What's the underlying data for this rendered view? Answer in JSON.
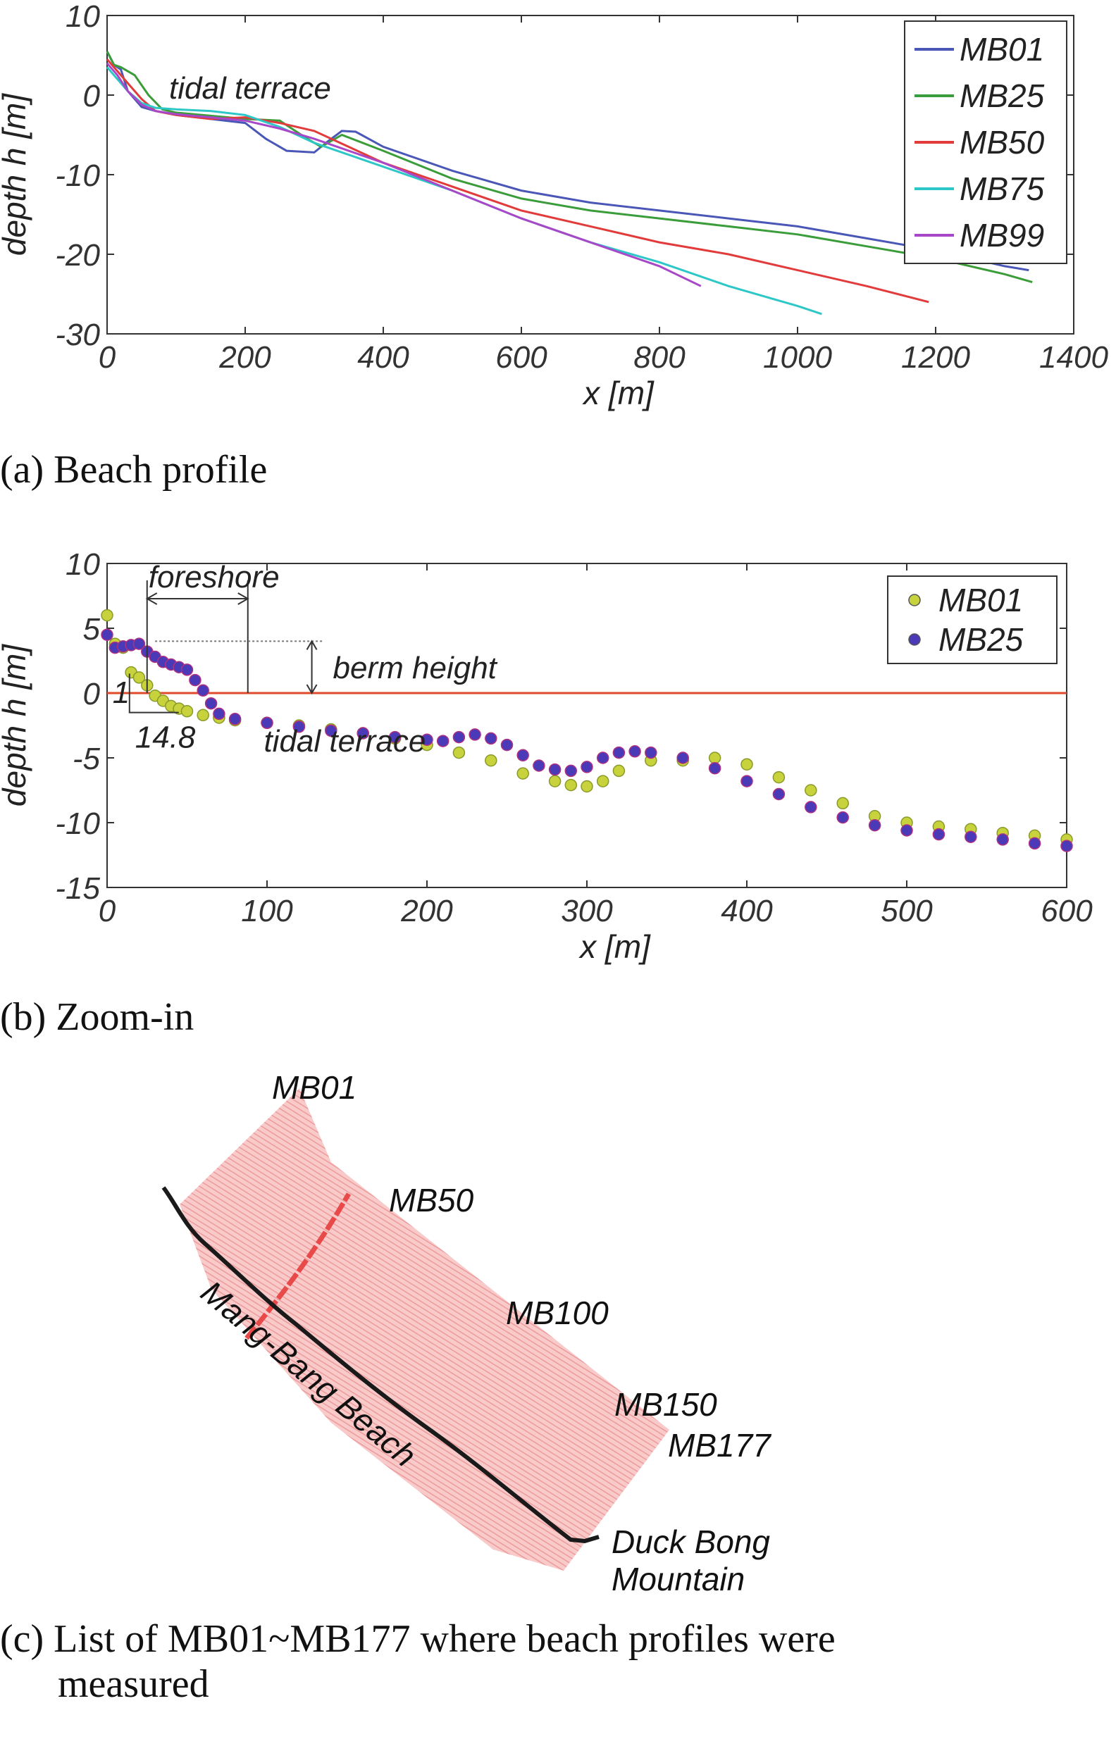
{
  "captions": {
    "a": "(a) Beach profile",
    "b": "(b) Zoom-in",
    "c_line1": "(c) List of MB01~MB177 where beach profiles were",
    "c_line2": "measured"
  },
  "chart_data": [
    {
      "type": "line",
      "panel": "a",
      "xlabel": "x [m]",
      "ylabel": "depth  h [m]",
      "xlim": [
        0,
        1400
      ],
      "ylim": [
        -30,
        10
      ],
      "xticks": [
        0,
        200,
        400,
        600,
        800,
        1000,
        1200,
        1400
      ],
      "yticks": [
        -30,
        -20,
        -10,
        0,
        10
      ],
      "legend_position": "top-right",
      "annotations": [
        {
          "text": "tidal terrace"
        }
      ],
      "series": [
        {
          "name": "MB01",
          "color": "#4a57b6",
          "x": [
            0,
            10,
            20,
            30,
            50,
            70,
            100,
            150,
            200,
            230,
            260,
            300,
            320,
            340,
            360,
            400,
            500,
            600,
            700,
            800,
            900,
            1000,
            1100,
            1200,
            1300,
            1335
          ],
          "y": [
            5.5,
            3.8,
            3.2,
            0.5,
            -1.5,
            -2.0,
            -2.5,
            -3.0,
            -3.5,
            -5.5,
            -7.0,
            -7.2,
            -5.8,
            -4.5,
            -4.6,
            -6.5,
            -9.5,
            -12.0,
            -13.5,
            -14.5,
            -15.5,
            -16.5,
            -18.0,
            -19.5,
            -21.5,
            -22.0
          ]
        },
        {
          "name": "MB25",
          "color": "#3a9d3a",
          "x": [
            0,
            10,
            20,
            40,
            60,
            80,
            100,
            150,
            200,
            250,
            290,
            310,
            340,
            400,
            500,
            600,
            700,
            800,
            900,
            1000,
            1100,
            1200,
            1300,
            1340
          ],
          "y": [
            5.5,
            3.8,
            3.5,
            2.5,
            0.0,
            -1.8,
            -2.2,
            -2.6,
            -3.0,
            -3.2,
            -5.5,
            -6.5,
            -5.0,
            -7.0,
            -10.5,
            -13.0,
            -14.5,
            -15.5,
            -16.5,
            -17.5,
            -19.0,
            -20.5,
            -22.5,
            -23.5
          ]
        },
        {
          "name": "MB50",
          "color": "#e23b3b",
          "x": [
            0,
            15,
            30,
            50,
            70,
            100,
            150,
            200,
            250,
            300,
            400,
            500,
            600,
            700,
            800,
            900,
            1000,
            1100,
            1190
          ],
          "y": [
            4.5,
            3.0,
            1.5,
            -0.5,
            -2.0,
            -2.5,
            -3.0,
            -2.8,
            -3.5,
            -4.5,
            -8.5,
            -11.5,
            -14.5,
            -16.5,
            -18.5,
            -20.0,
            -22.0,
            -24.0,
            -26.0
          ]
        },
        {
          "name": "MB75",
          "color": "#2ec7c7",
          "x": [
            0,
            15,
            30,
            50,
            70,
            100,
            150,
            200,
            250,
            300,
            400,
            500,
            600,
            700,
            800,
            900,
            1000,
            1035
          ],
          "y": [
            3.5,
            2.0,
            0.5,
            -1.0,
            -1.6,
            -1.8,
            -2.0,
            -2.5,
            -4.0,
            -6.0,
            -9.0,
            -12.0,
            -15.5,
            -18.5,
            -21.0,
            -24.0,
            -26.5,
            -27.5
          ]
        },
        {
          "name": "MB99",
          "color": "#a848c8",
          "x": [
            0,
            15,
            30,
            50,
            70,
            100,
            150,
            200,
            250,
            300,
            400,
            500,
            600,
            700,
            800,
            860
          ],
          "y": [
            4.0,
            2.5,
            0.5,
            -1.2,
            -2.0,
            -2.4,
            -2.8,
            -3.2,
            -4.2,
            -5.5,
            -8.5,
            -12.0,
            -15.5,
            -18.5,
            -21.5,
            -24.0
          ]
        }
      ]
    },
    {
      "type": "scatter",
      "panel": "b",
      "xlabel": "x [m]",
      "ylabel": "depth h [m]",
      "xlim": [
        0,
        600
      ],
      "ylim": [
        -15,
        10
      ],
      "xticks": [
        0,
        100,
        200,
        300,
        400,
        500,
        600
      ],
      "yticks": [
        -15,
        -10,
        -5,
        0,
        5,
        10
      ],
      "legend_position": "top-right",
      "reference_line": {
        "y": 0,
        "color": "#e04a2a"
      },
      "annotations": [
        {
          "text": "foreshore"
        },
        {
          "text": "berm height"
        },
        {
          "text": "tidal terrace"
        },
        {
          "text": "1"
        },
        {
          "text": "14.8"
        }
      ],
      "series": [
        {
          "name": "MB01",
          "color": "#c8d23c",
          "x": [
            0,
            5,
            10,
            15,
            20,
            25,
            30,
            35,
            40,
            45,
            50,
            60,
            70,
            80,
            100,
            120,
            140,
            160,
            180,
            200,
            220,
            240,
            260,
            280,
            290,
            300,
            310,
            320,
            340,
            360,
            380,
            400,
            420,
            440,
            460,
            480,
            500,
            520,
            540,
            560,
            580,
            600
          ],
          "y": [
            6.0,
            3.8,
            3.5,
            1.6,
            1.2,
            0.6,
            -0.2,
            -0.6,
            -1.0,
            -1.2,
            -1.4,
            -1.7,
            -1.9,
            -2.1,
            -2.3,
            -2.5,
            -2.8,
            -3.1,
            -3.5,
            -4.0,
            -4.6,
            -5.2,
            -6.2,
            -6.8,
            -7.1,
            -7.2,
            -6.8,
            -6.0,
            -5.2,
            -5.2,
            -5.0,
            -5.5,
            -6.5,
            -7.5,
            -8.5,
            -9.5,
            -10.0,
            -10.3,
            -10.5,
            -10.8,
            -11.0,
            -11.3
          ]
        },
        {
          "name": "MB25",
          "color": "#4a3ab8",
          "x": [
            0,
            5,
            10,
            15,
            20,
            25,
            30,
            35,
            40,
            45,
            50,
            55,
            60,
            65,
            70,
            80,
            100,
            120,
            140,
            160,
            180,
            200,
            210,
            220,
            230,
            240,
            250,
            260,
            270,
            280,
            290,
            300,
            310,
            320,
            330,
            340,
            360,
            380,
            400,
            420,
            440,
            460,
            480,
            500,
            520,
            540,
            560,
            580,
            600
          ],
          "y": [
            4.5,
            3.5,
            3.6,
            3.7,
            3.8,
            3.2,
            2.8,
            2.4,
            2.2,
            2.0,
            1.8,
            1.0,
            0.2,
            -0.8,
            -1.6,
            -2.0,
            -2.3,
            -2.6,
            -2.9,
            -3.1,
            -3.4,
            -3.6,
            -3.7,
            -3.4,
            -3.2,
            -3.5,
            -4.0,
            -4.8,
            -5.6,
            -5.9,
            -6.0,
            -5.7,
            -5.0,
            -4.6,
            -4.5,
            -4.6,
            -5.0,
            -5.8,
            -6.8,
            -7.8,
            -8.8,
            -9.6,
            -10.2,
            -10.6,
            -10.9,
            -11.1,
            -11.3,
            -11.6,
            -11.8
          ]
        }
      ]
    }
  ],
  "map": {
    "profile_labels": [
      "MB01",
      "MB50",
      "MB100",
      "MB150",
      "MB177"
    ],
    "beach_label": "Mang-Bang Beach",
    "mountain_label_line1": "Duck Bong",
    "mountain_label_line2": "Mountain",
    "fill_color": "#f2a6a6",
    "highlight_color": "#e84a4a",
    "coast_color": "#111111"
  }
}
